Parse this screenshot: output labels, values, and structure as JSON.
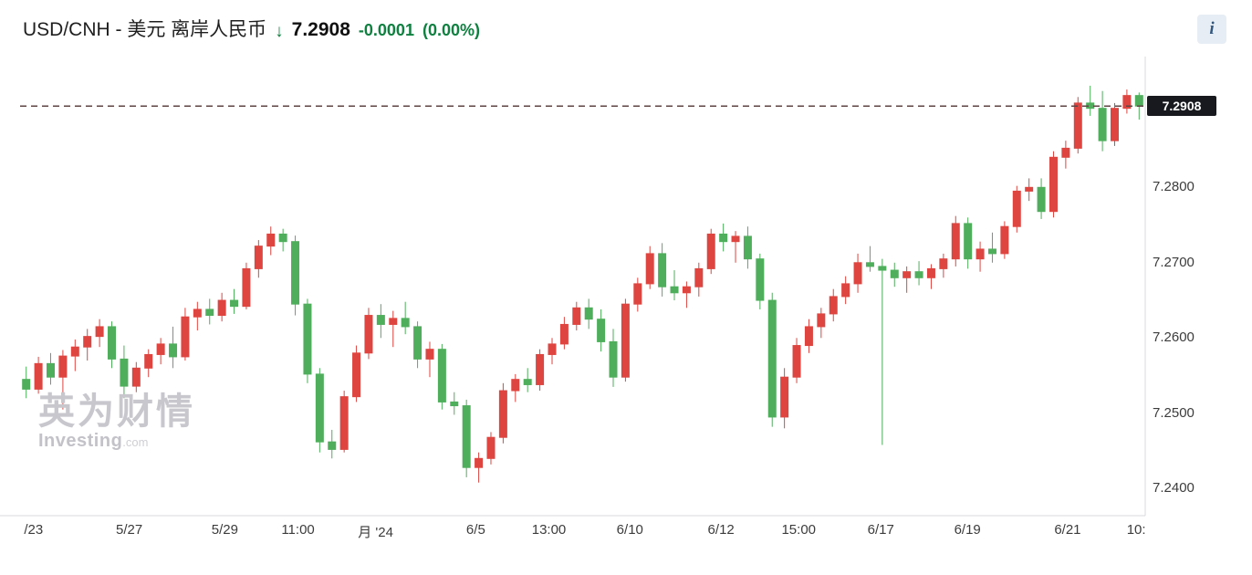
{
  "header": {
    "symbol": "USD/CNH - 美元 离岸人民币",
    "arrow": "↓",
    "price": "7.2908",
    "change": "-0.0001",
    "change_pct": "(0.00%)",
    "change_color": "#0f8040",
    "info_label": "i"
  },
  "watermark": {
    "cn": "英为财情",
    "brand": "Investing",
    "tld": ".com"
  },
  "chart_data": {
    "type": "candlestick",
    "symbol": "USD/CNH",
    "ylim": [
      7.2364,
      7.2964
    ],
    "last_price": 7.2908,
    "last_price_label": "7.2908",
    "up_color": "#de4540",
    "down_color": "#4fae5c",
    "dash_color": "#5f4444",
    "tag_bg": "#17191e",
    "grid": false,
    "legend": "none",
    "y_ticks": [
      {
        "label": "7.2800",
        "value": 7.28
      },
      {
        "label": "7.2700",
        "value": 7.27
      },
      {
        "label": "7.2600",
        "value": 7.26
      },
      {
        "label": "7.2500",
        "value": 7.25
      },
      {
        "label": "7.2400",
        "value": 7.24
      }
    ],
    "x_labels": [
      {
        "label": "/23",
        "pos": 0.012
      },
      {
        "label": "5/27",
        "pos": 0.097
      },
      {
        "label": "5/29",
        "pos": 0.182
      },
      {
        "label": "11:00",
        "pos": 0.247
      },
      {
        "label": "月 '24",
        "pos": 0.316
      },
      {
        "label": "6/5",
        "pos": 0.405
      },
      {
        "label": "13:00",
        "pos": 0.47
      },
      {
        "label": "6/10",
        "pos": 0.542
      },
      {
        "label": "6/12",
        "pos": 0.623
      },
      {
        "label": "15:00",
        "pos": 0.692
      },
      {
        "label": "6/17",
        "pos": 0.765
      },
      {
        "label": "6/19",
        "pos": 0.842
      },
      {
        "label": "6/21",
        "pos": 0.931
      },
      {
        "label": "10:",
        "pos": 0.992
      }
    ],
    "candles": [
      [
        7.2545,
        7.2562,
        7.252,
        7.2532
      ],
      [
        7.2532,
        7.2575,
        7.2526,
        7.2566
      ],
      [
        7.2566,
        7.258,
        7.2538,
        7.2548
      ],
      [
        7.2548,
        7.2584,
        7.2505,
        7.2576
      ],
      [
        7.2576,
        7.2598,
        7.2556,
        7.2588
      ],
      [
        7.2588,
        7.2612,
        7.257,
        7.2602
      ],
      [
        7.2602,
        7.2625,
        7.2588,
        7.2615
      ],
      [
        7.2615,
        7.2622,
        7.256,
        7.2572
      ],
      [
        7.2572,
        7.259,
        7.252,
        7.2536
      ],
      [
        7.2536,
        7.2568,
        7.2528,
        7.256
      ],
      [
        7.256,
        7.2585,
        7.2548,
        7.2578
      ],
      [
        7.2578,
        7.26,
        7.2565,
        7.2592
      ],
      [
        7.2592,
        7.2615,
        7.256,
        7.2575
      ],
      [
        7.2575,
        7.264,
        7.257,
        7.2628
      ],
      [
        7.2628,
        7.2648,
        7.261,
        7.2638
      ],
      [
        7.2638,
        7.2652,
        7.2618,
        7.263
      ],
      [
        7.263,
        7.266,
        7.2622,
        7.265
      ],
      [
        7.265,
        7.2665,
        7.2632,
        7.2642
      ],
      [
        7.2642,
        7.27,
        7.2638,
        7.2692
      ],
      [
        7.2692,
        7.273,
        7.268,
        7.2722
      ],
      [
        7.2722,
        7.2748,
        7.271,
        7.2738
      ],
      [
        7.2738,
        7.2745,
        7.2715,
        7.2728
      ],
      [
        7.2728,
        7.2736,
        7.263,
        7.2645
      ],
      [
        7.2645,
        7.2652,
        7.254,
        7.2552
      ],
      [
        7.2552,
        7.256,
        7.2448,
        7.2462
      ],
      [
        7.2462,
        7.2478,
        7.244,
        7.2452
      ],
      [
        7.2452,
        7.253,
        7.2448,
        7.2522
      ],
      [
        7.2522,
        7.259,
        7.2515,
        7.258
      ],
      [
        7.258,
        7.264,
        7.2572,
        7.263
      ],
      [
        7.263,
        7.2645,
        7.26,
        7.2618
      ],
      [
        7.2618,
        7.2636,
        7.2588,
        7.2626
      ],
      [
        7.2626,
        7.2648,
        7.2605,
        7.2615
      ],
      [
        7.2615,
        7.2622,
        7.256,
        7.2572
      ],
      [
        7.2572,
        7.2595,
        7.2548,
        7.2585
      ],
      [
        7.2585,
        7.2592,
        7.2505,
        7.2515
      ],
      [
        7.2515,
        7.2528,
        7.2498,
        7.251
      ],
      [
        7.251,
        7.2518,
        7.2415,
        7.2428
      ],
      [
        7.2428,
        7.2448,
        7.2408,
        7.244
      ],
      [
        7.244,
        7.2475,
        7.2432,
        7.2468
      ],
      [
        7.2468,
        7.254,
        7.246,
        7.253
      ],
      [
        7.253,
        7.2552,
        7.2515,
        7.2545
      ],
      [
        7.2545,
        7.256,
        7.2528,
        7.2538
      ],
      [
        7.2538,
        7.2585,
        7.253,
        7.2578
      ],
      [
        7.2578,
        7.26,
        7.2565,
        7.2592
      ],
      [
        7.2592,
        7.2628,
        7.2585,
        7.2618
      ],
      [
        7.2618,
        7.2648,
        7.261,
        7.264
      ],
      [
        7.264,
        7.2652,
        7.2612,
        7.2625
      ],
      [
        7.2625,
        7.2638,
        7.2582,
        7.2595
      ],
      [
        7.2595,
        7.2612,
        7.2535,
        7.2548
      ],
      [
        7.2548,
        7.2652,
        7.2542,
        7.2645
      ],
      [
        7.2645,
        7.268,
        7.2635,
        7.2672
      ],
      [
        7.2672,
        7.2722,
        7.2665,
        7.2712
      ],
      [
        7.2712,
        7.2726,
        7.2655,
        7.2668
      ],
      [
        7.2668,
        7.269,
        7.265,
        7.266
      ],
      [
        7.266,
        7.2675,
        7.264,
        7.2668
      ],
      [
        7.2668,
        7.27,
        7.2655,
        7.2692
      ],
      [
        7.2692,
        7.2745,
        7.2685,
        7.2738
      ],
      [
        7.2738,
        7.2752,
        7.2715,
        7.2728
      ],
      [
        7.2728,
        7.2742,
        7.27,
        7.2735
      ],
      [
        7.2735,
        7.2748,
        7.2692,
        7.2705
      ],
      [
        7.2705,
        7.2712,
        7.2638,
        7.265
      ],
      [
        7.265,
        7.266,
        7.2482,
        7.2495
      ],
      [
        7.2495,
        7.256,
        7.248,
        7.2548
      ],
      [
        7.2548,
        7.26,
        7.254,
        7.259
      ],
      [
        7.259,
        7.2625,
        7.258,
        7.2615
      ],
      [
        7.2615,
        7.264,
        7.26,
        7.2632
      ],
      [
        7.2632,
        7.2665,
        7.2622,
        7.2655
      ],
      [
        7.2655,
        7.2682,
        7.2645,
        7.2672
      ],
      [
        7.2672,
        7.2712,
        7.266,
        7.27
      ],
      [
        7.27,
        7.2722,
        7.2688,
        7.2695
      ],
      [
        7.2695,
        7.2705,
        7.2458,
        7.269
      ],
      [
        7.269,
        7.27,
        7.2668,
        7.268
      ],
      [
        7.268,
        7.2695,
        7.266,
        7.2688
      ],
      [
        7.2688,
        7.2702,
        7.267,
        7.268
      ],
      [
        7.268,
        7.2698,
        7.2665,
        7.2692
      ],
      [
        7.2692,
        7.2712,
        7.268,
        7.2705
      ],
      [
        7.2705,
        7.2762,
        7.2695,
        7.2752
      ],
      [
        7.2752,
        7.276,
        7.2692,
        7.2705
      ],
      [
        7.2705,
        7.2728,
        7.2688,
        7.2718
      ],
      [
        7.2718,
        7.274,
        7.27,
        7.2712
      ],
      [
        7.2712,
        7.2755,
        7.2705,
        7.2748
      ],
      [
        7.2748,
        7.2802,
        7.274,
        7.2795
      ],
      [
        7.2795,
        7.2812,
        7.2782,
        7.28
      ],
      [
        7.28,
        7.2812,
        7.2758,
        7.2768
      ],
      [
        7.2768,
        7.2848,
        7.276,
        7.284
      ],
      [
        7.284,
        7.2862,
        7.2825,
        7.2852
      ],
      [
        7.2852,
        7.292,
        7.2845,
        7.2912
      ],
      [
        7.2912,
        7.2935,
        7.2895,
        7.2905
      ],
      [
        7.2905,
        7.2928,
        7.2848,
        7.2862
      ],
      [
        7.2862,
        7.2912,
        7.2855,
        7.2905
      ],
      [
        7.2905,
        7.293,
        7.2898,
        7.2922
      ],
      [
        7.2922,
        7.2926,
        7.289,
        7.2908
      ]
    ]
  }
}
